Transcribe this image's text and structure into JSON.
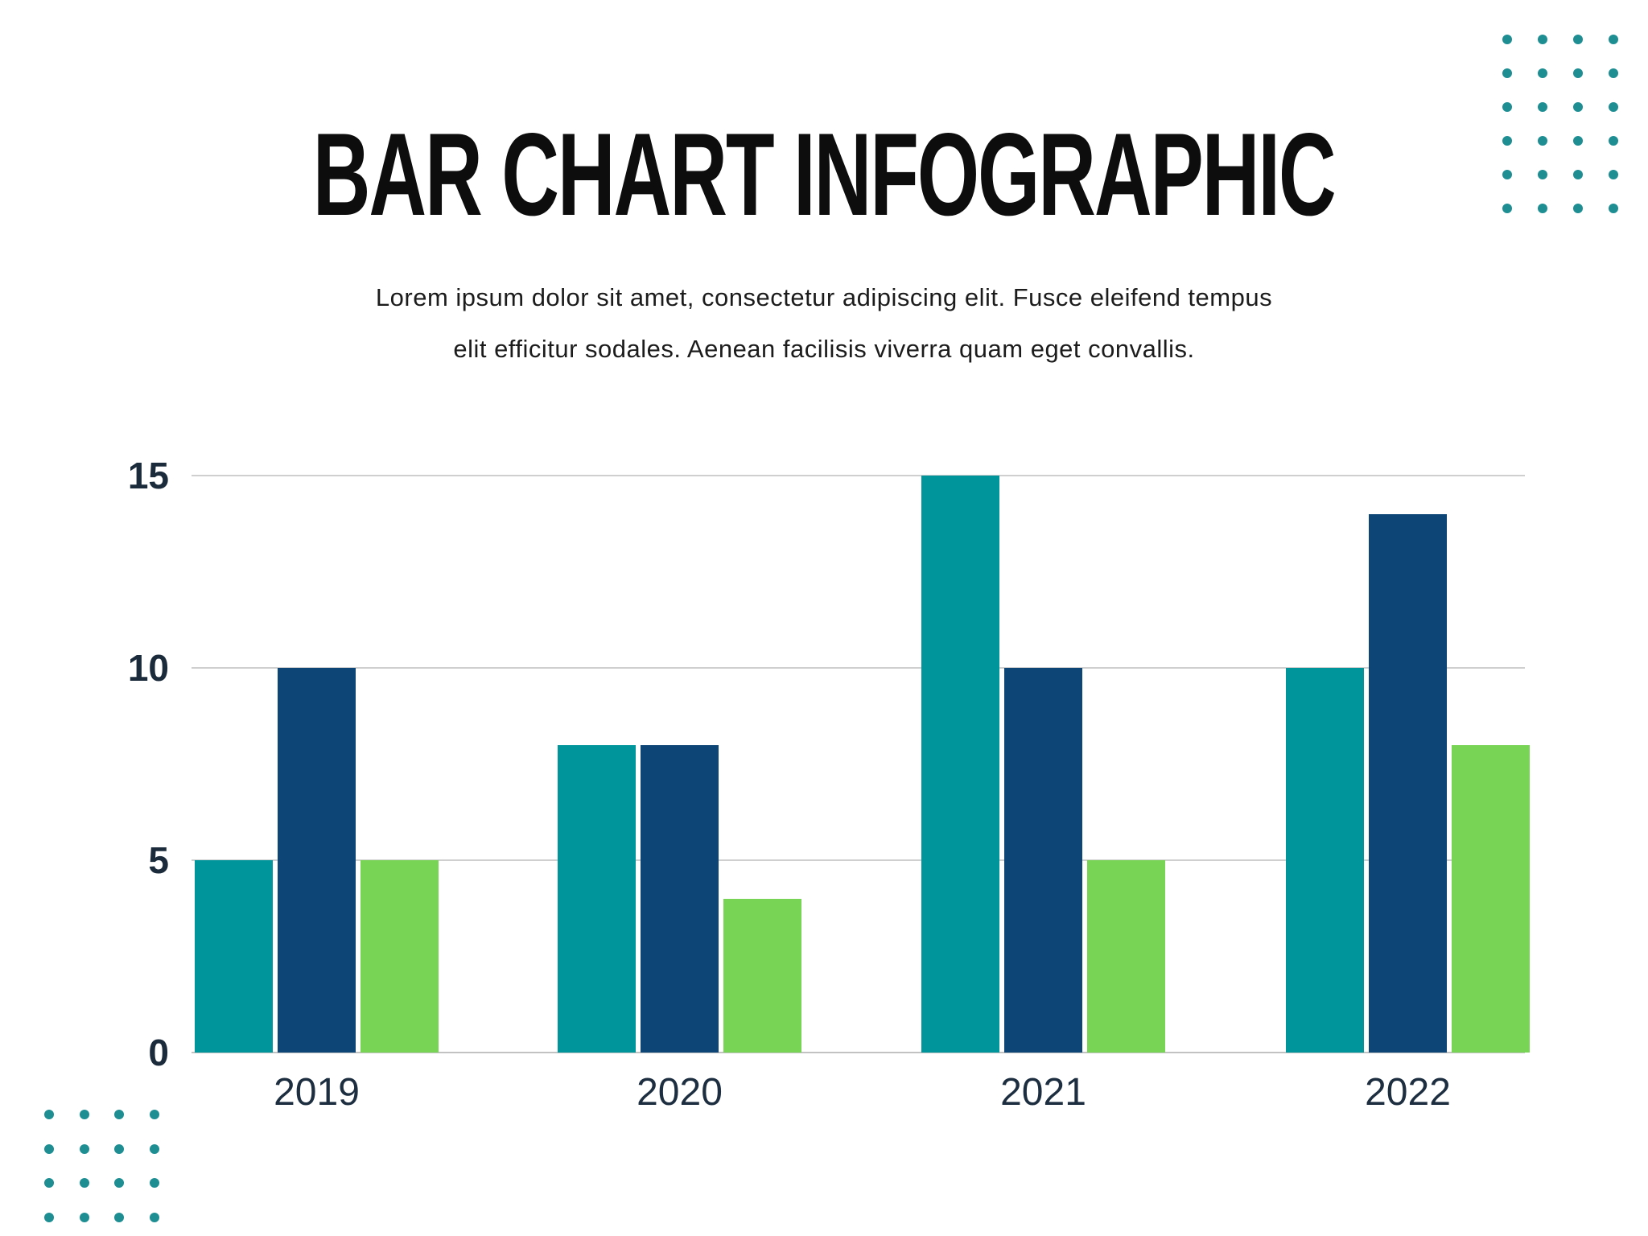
{
  "title": "BAR CHART INFOGRAPHIC",
  "subtitle_line1": "Lorem ipsum dolor sit amet, consectetur adipiscing elit. Fusce eleifend tempus",
  "subtitle_line2": "elit efficitur sodales. Aenean facilisis viverra quam eget convallis.",
  "chart_data": {
    "type": "bar",
    "categories": [
      "2019",
      "2020",
      "2021",
      "2022"
    ],
    "series": [
      {
        "name": "teal",
        "color": "#00959B",
        "values": [
          5,
          8,
          15,
          10
        ]
      },
      {
        "name": "navy",
        "color": "#0D4577",
        "values": [
          10,
          8,
          10,
          14
        ]
      },
      {
        "name": "green",
        "color": "#77D455",
        "values": [
          5,
          4,
          5,
          8
        ]
      }
    ],
    "title": "BAR CHART INFOGRAPHIC",
    "xlabel": "",
    "ylabel": "",
    "ylim": [
      0,
      15
    ],
    "yticks": [
      0,
      5,
      10,
      15
    ],
    "grid": true,
    "legend": false
  },
  "colors": {
    "background": "#FFFFFF",
    "title_text": "#0D0D0D",
    "subtitle_text": "#1C1C1C",
    "y_axis_label": "#1B2B3B",
    "x_axis_label": "#1D2E40",
    "gridline": "#CFCFCF",
    "corner_dot": "#1E8E93"
  },
  "decor": {
    "dot_grid_top_right": {
      "cols": 4,
      "rows": 6
    },
    "dot_grid_bottom_left": {
      "cols": 4,
      "rows": 4
    }
  }
}
